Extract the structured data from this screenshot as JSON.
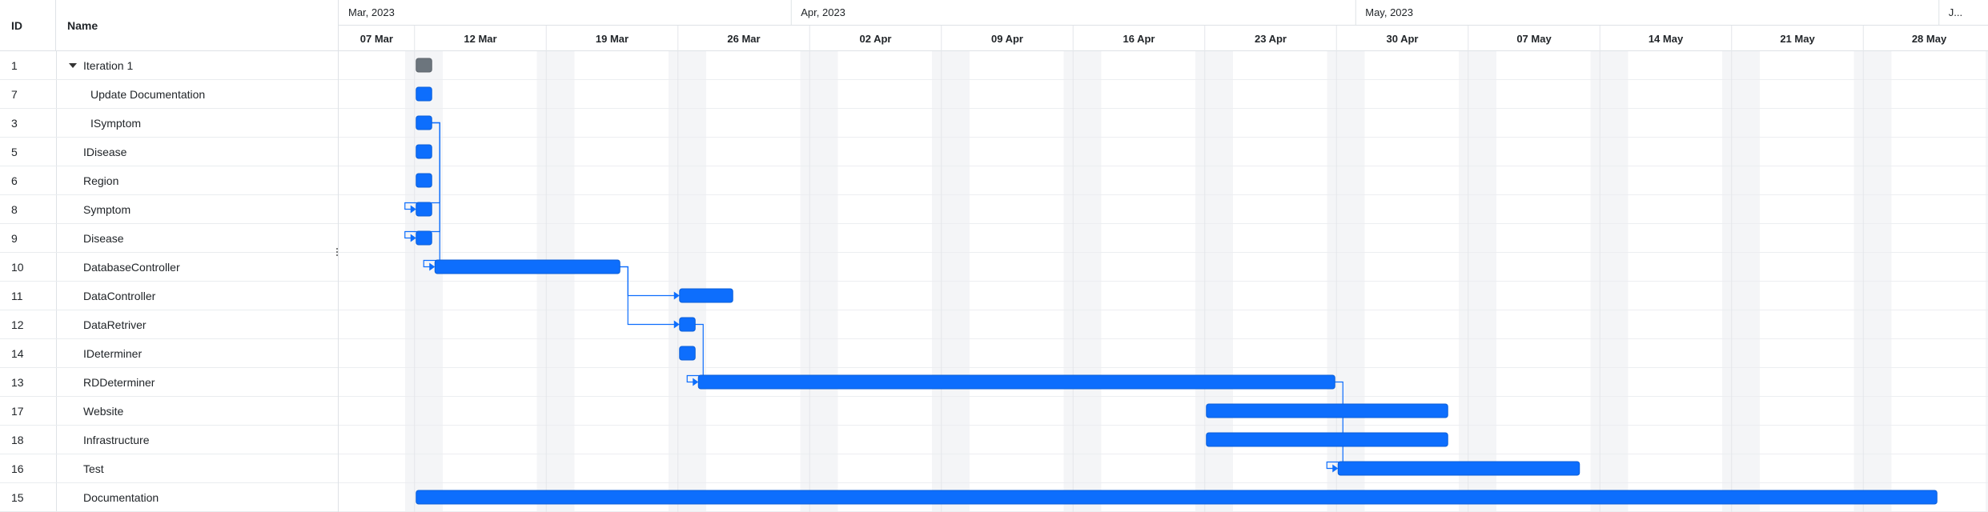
{
  "grid": {
    "header": {
      "id": "ID",
      "name": "Name"
    },
    "rows": [
      {
        "id": "1",
        "name": "Iteration 1",
        "indent": 0,
        "expanded": true
      },
      {
        "id": "7",
        "name": "Update Documentation",
        "indent": 2
      },
      {
        "id": "3",
        "name": "ISymptom",
        "indent": 2
      },
      {
        "id": "5",
        "name": "IDisease",
        "indent": 1
      },
      {
        "id": "6",
        "name": "Region",
        "indent": 1
      },
      {
        "id": "8",
        "name": "Symptom",
        "indent": 1
      },
      {
        "id": "9",
        "name": "Disease",
        "indent": 1
      },
      {
        "id": "10",
        "name": "DatabaseController",
        "indent": 1
      },
      {
        "id": "11",
        "name": "DataController",
        "indent": 1
      },
      {
        "id": "12",
        "name": "DataRetriver",
        "indent": 1
      },
      {
        "id": "14",
        "name": "IDeterminer",
        "indent": 1
      },
      {
        "id": "13",
        "name": "RDDeterminer",
        "indent": 1
      },
      {
        "id": "17",
        "name": "Website",
        "indent": 1
      },
      {
        "id": "18",
        "name": "Infrastructure",
        "indent": 1
      },
      {
        "id": "16",
        "name": "Test",
        "indent": 1
      },
      {
        "id": "15",
        "name": "Documentation",
        "indent": 1
      }
    ]
  },
  "timeline": {
    "months": [
      "Mar, 2023",
      "Apr, 2023",
      "May, 2023",
      "J..."
    ],
    "weeks": [
      "07 Mar",
      "12 Mar",
      "19 Mar",
      "26 Mar",
      "02 Apr",
      "09 Apr",
      "16 Apr",
      "23 Apr",
      "30 Apr",
      "07 May",
      "14 May",
      "21 May",
      "28 May"
    ],
    "colors": {
      "bar": "#0d6efd",
      "summary": "#6c757d",
      "weekend": "#f4f5f7",
      "link": "#0d6efd"
    },
    "tasks": [
      {
        "row": 0,
        "type": "summary",
        "start": "2023-03-12",
        "end": "2023-03-13"
      },
      {
        "row": 1,
        "type": "task",
        "start": "2023-03-12",
        "end": "2023-03-13"
      },
      {
        "row": 2,
        "type": "task",
        "start": "2023-03-12",
        "end": "2023-03-13"
      },
      {
        "row": 3,
        "type": "task",
        "start": "2023-03-12",
        "end": "2023-03-13"
      },
      {
        "row": 4,
        "type": "task",
        "start": "2023-03-12",
        "end": "2023-03-13"
      },
      {
        "row": 5,
        "type": "task",
        "start": "2023-03-12",
        "end": "2023-03-13"
      },
      {
        "row": 6,
        "type": "task",
        "start": "2023-03-12",
        "end": "2023-03-13"
      },
      {
        "row": 7,
        "type": "task",
        "start": "2023-03-13",
        "end": "2023-03-23"
      },
      {
        "row": 8,
        "type": "task",
        "start": "2023-03-26",
        "end": "2023-03-29"
      },
      {
        "row": 9,
        "type": "task",
        "start": "2023-03-26",
        "end": "2023-03-27"
      },
      {
        "row": 10,
        "type": "task",
        "start": "2023-03-26",
        "end": "2023-03-27"
      },
      {
        "row": 11,
        "type": "task",
        "start": "2023-03-27",
        "end": "2023-04-30"
      },
      {
        "row": 12,
        "type": "task",
        "start": "2023-04-23",
        "end": "2023-05-06"
      },
      {
        "row": 13,
        "type": "task",
        "start": "2023-04-23",
        "end": "2023-05-06"
      },
      {
        "row": 14,
        "type": "task",
        "start": "2023-04-30",
        "end": "2023-05-13"
      },
      {
        "row": 15,
        "type": "task",
        "start": "2023-03-12",
        "end": "2023-06-01"
      }
    ],
    "links": [
      {
        "from": 2,
        "to": 5
      },
      {
        "from": 2,
        "to": 6
      },
      {
        "from": 2,
        "to": 7
      },
      {
        "from": 7,
        "to": 8
      },
      {
        "from": 7,
        "to": 9
      },
      {
        "from": 9,
        "to": 11
      },
      {
        "from": 11,
        "to": 14
      }
    ]
  }
}
